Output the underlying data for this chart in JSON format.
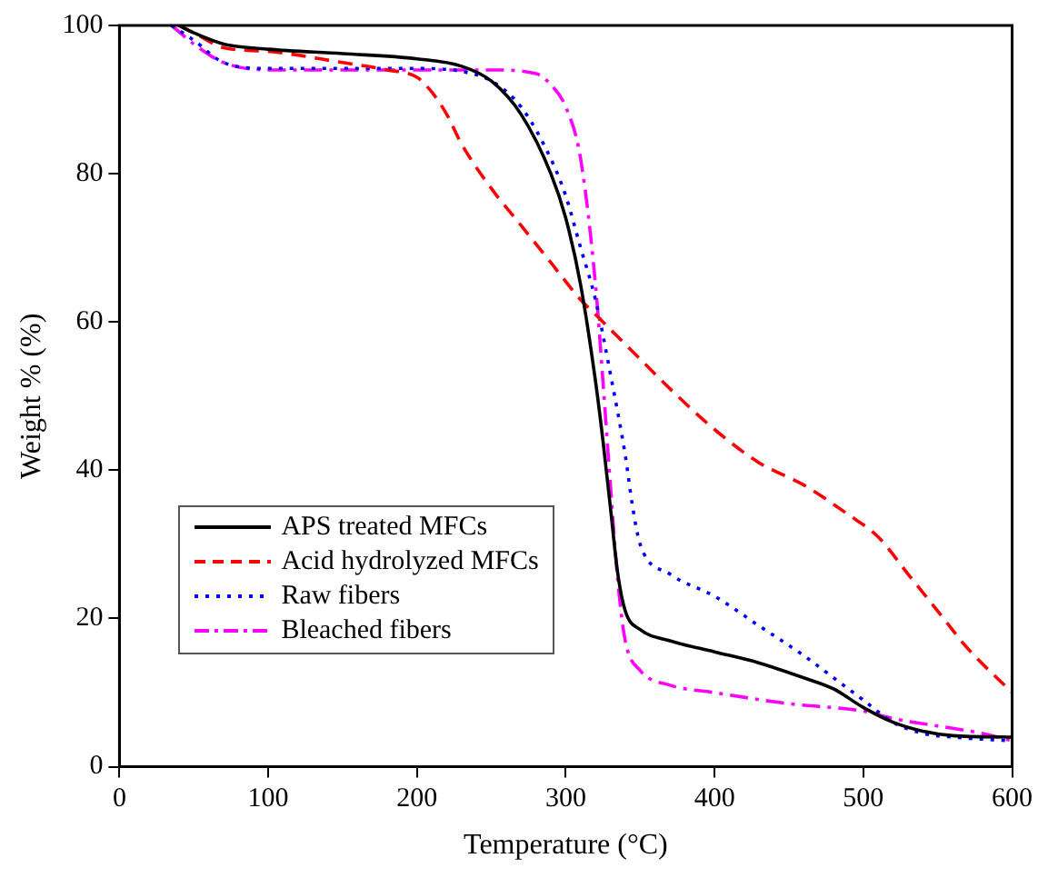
{
  "chart_data": {
    "type": "line",
    "xlabel": "Temperature (°C)",
    "ylabel": "Weight % (%)",
    "xlim": [
      0,
      600
    ],
    "xticks": [
      0,
      100,
      200,
      300,
      400,
      500,
      600
    ],
    "ylim": [
      0,
      100
    ],
    "yticks": [
      0,
      20,
      40,
      60,
      80,
      100
    ],
    "grid": false,
    "legend": "bottom left",
    "marker": "none",
    "series": [
      {
        "name": "APS treated MFCs",
        "color": "#000000",
        "line_style": "solid",
        "x": [
          40,
          50,
          70,
          100,
          150,
          200,
          230,
          250,
          270,
          290,
          300,
          310,
          320,
          325,
          330,
          335,
          340,
          350,
          370,
          400,
          430,
          460,
          480,
          500,
          520,
          540,
          560,
          600
        ],
        "values": [
          100,
          99,
          97.5,
          96.8,
          96.2,
          95.5,
          94.5,
          92.5,
          88,
          80,
          74,
          65,
          52,
          44,
          35,
          26,
          21,
          18.5,
          17,
          15.5,
          14,
          12,
          10.5,
          8,
          6,
          4.8,
          4.2,
          4
        ]
      },
      {
        "name": "Acid hydrolyzed MFCs",
        "color": "#ff0000",
        "line_style": "dashed",
        "x": [
          40,
          50,
          70,
          100,
          150,
          180,
          200,
          210,
          220,
          230,
          250,
          270,
          290,
          310,
          320,
          330,
          350,
          370,
          400,
          430,
          460,
          490,
          510,
          530,
          550,
          570,
          600
        ],
        "values": [
          100,
          99,
          97,
          96.5,
          95,
          94,
          93,
          91,
          88,
          84,
          78,
          73,
          68,
          63,
          61,
          59,
          55,
          51,
          45.5,
          41,
          38,
          34,
          31,
          26,
          21,
          16,
          10
        ]
      },
      {
        "name": "Raw fibers",
        "color": "#0000ff",
        "line_style": "dotted",
        "x": [
          35,
          50,
          70,
          100,
          150,
          200,
          230,
          250,
          270,
          290,
          300,
          310,
          320,
          330,
          340,
          345,
          350,
          370,
          400,
          430,
          460,
          480,
          500,
          520,
          540,
          560,
          600
        ],
        "values": [
          100,
          98,
          95,
          94.2,
          94.2,
          94.2,
          93.8,
          92.5,
          89,
          82,
          77,
          70,
          63,
          53,
          42,
          35,
          30,
          26,
          23,
          19,
          15,
          12,
          9,
          6,
          4.5,
          4,
          3.5
        ]
      },
      {
        "name": "Bleached fibers",
        "color": "#ff00ff",
        "line_style": "dashdot",
        "x": [
          35,
          50,
          70,
          100,
          150,
          200,
          250,
          280,
          290,
          300,
          310,
          320,
          325,
          330,
          335,
          340,
          350,
          370,
          400,
          450,
          500,
          520,
          550,
          580,
          600
        ],
        "values": [
          100,
          97.5,
          95,
          94,
          94,
          94,
          94,
          93.5,
          92,
          89,
          82,
          65,
          52,
          38,
          25,
          17,
          13,
          11,
          10,
          8.5,
          7.5,
          6.5,
          5.5,
          4.5,
          3.5
        ]
      }
    ]
  }
}
